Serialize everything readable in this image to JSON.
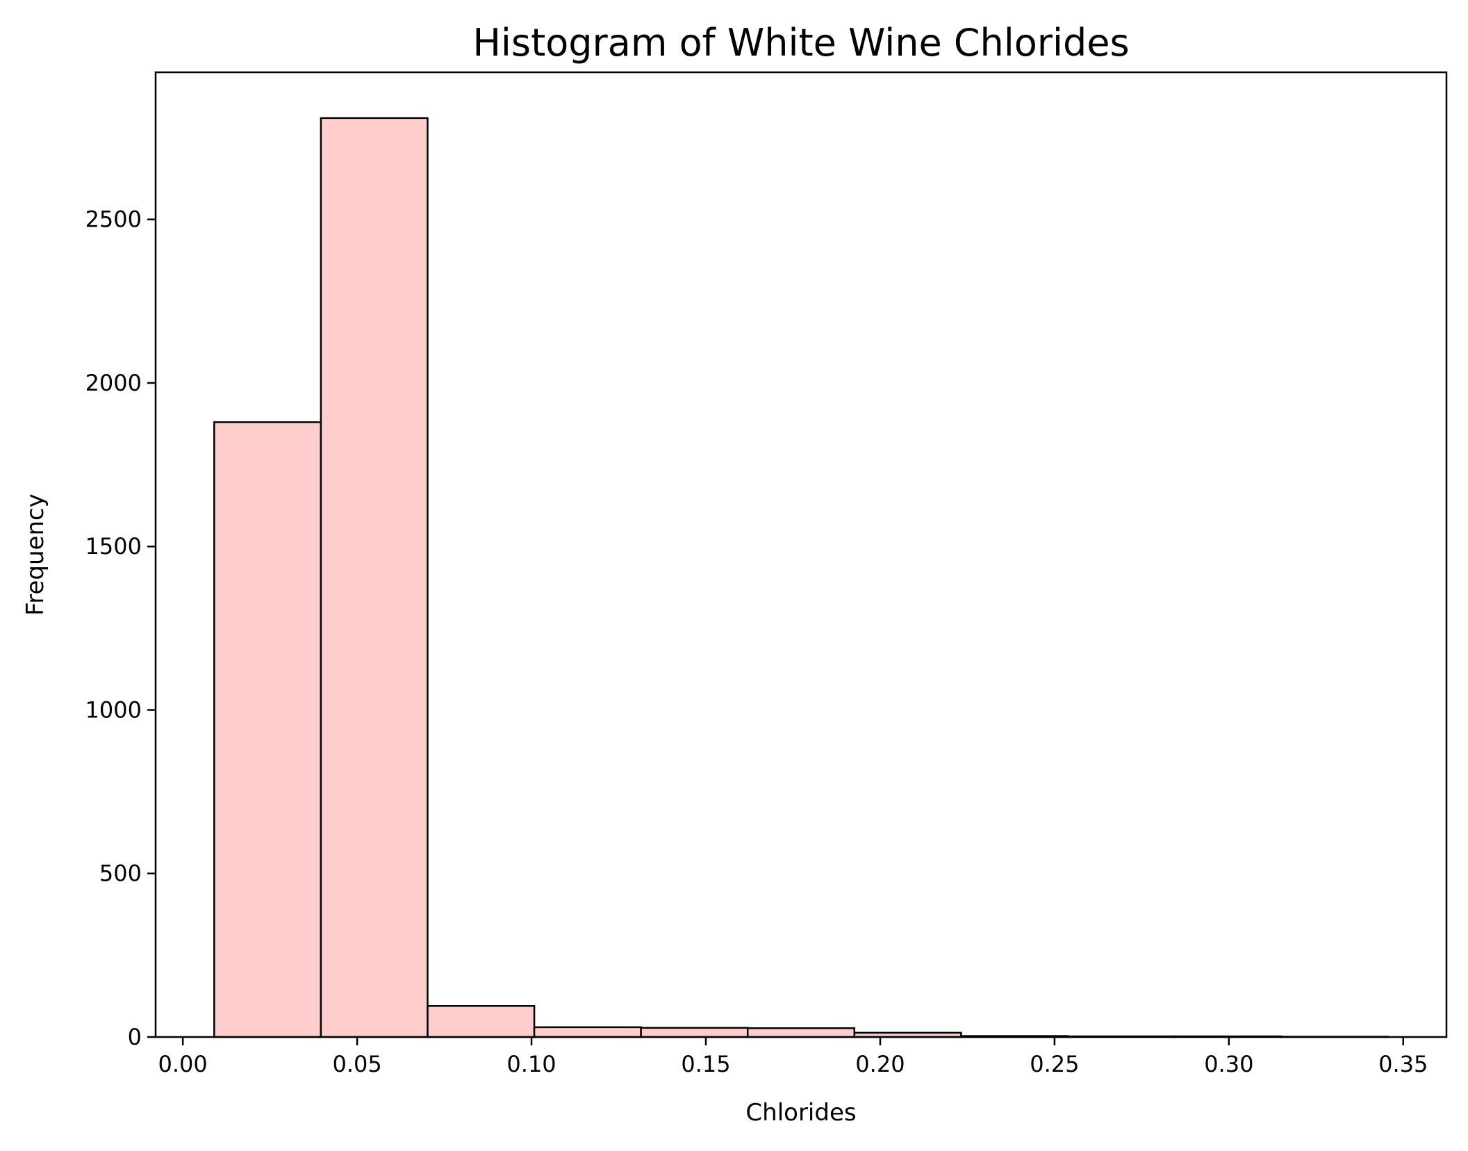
{
  "chart_data": {
    "type": "bar",
    "subtype": "histogram",
    "title": "Histogram of White Wine Chlorides",
    "xlabel": "Chlorides",
    "ylabel": "Frequency",
    "bin_edges": [
      0.009,
      0.0396,
      0.0702,
      0.1008,
      0.1314,
      0.162,
      0.1926,
      0.2232,
      0.2538,
      0.2844,
      0.315,
      0.3456
    ],
    "values": [
      1880,
      2810,
      95,
      30,
      28,
      27,
      13,
      3,
      2,
      2,
      1
    ],
    "xlim": [
      -0.0078,
      0.3624
    ],
    "ylim": [
      0,
      2950
    ],
    "x_ticks": [
      0.0,
      0.05,
      0.1,
      0.15,
      0.2,
      0.25,
      0.3,
      0.35
    ],
    "x_tick_labels": [
      "0.00",
      "0.05",
      "0.10",
      "0.15",
      "0.20",
      "0.25",
      "0.30",
      "0.35"
    ],
    "y_ticks": [
      0,
      500,
      1000,
      1500,
      2000,
      2500
    ],
    "y_tick_labels": [
      "0",
      "500",
      "1000",
      "1500",
      "2000",
      "2500"
    ],
    "grid": false,
    "legend": "none",
    "colors": {
      "bar_fill": "#ffcdcb",
      "bar_edge": "#000000",
      "axes": "#000000",
      "background": "#ffffff"
    }
  }
}
